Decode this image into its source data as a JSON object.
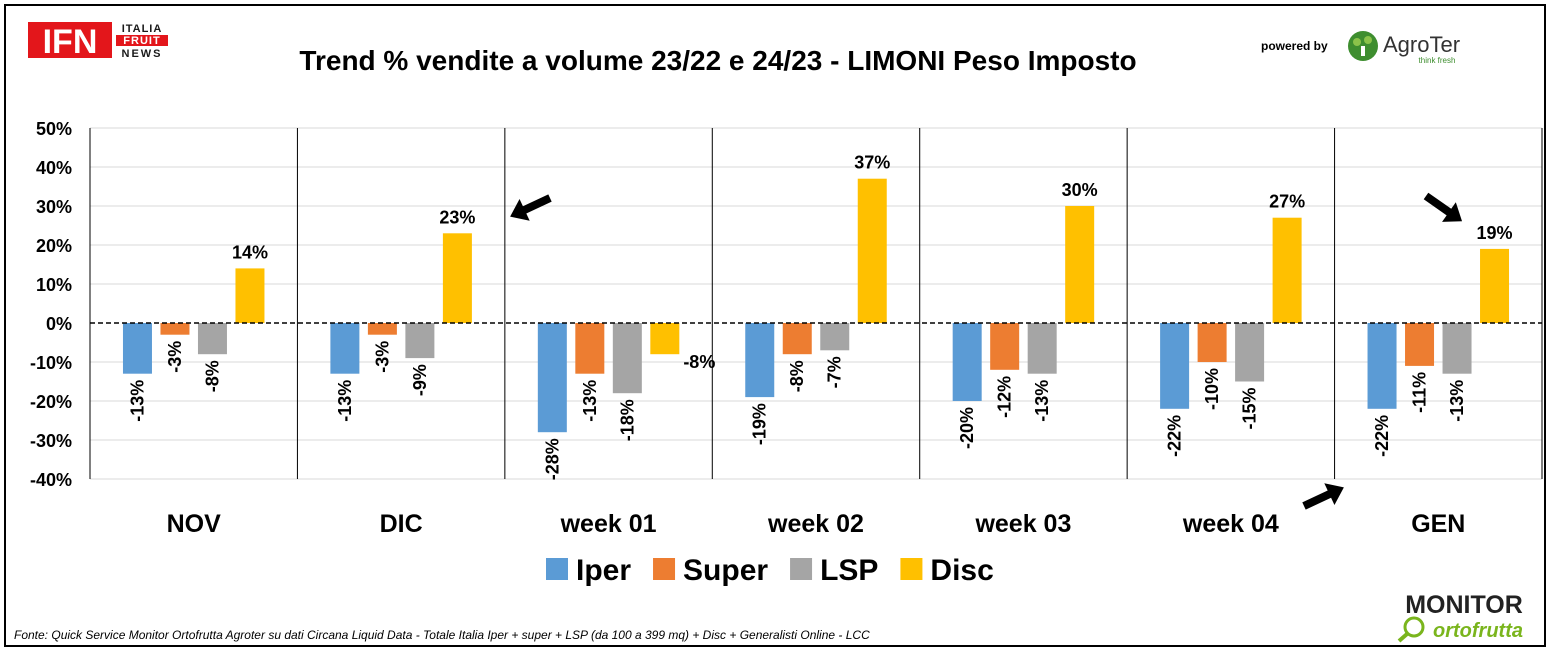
{
  "title": "Trend % vendite a volume 23/22 e 24/23 - LIMONI Peso Imposto",
  "footer_source": "Fonte: Quick Service Monitor Ortofrutta Agroter su dati Circana Liquid Data - Totale Italia Iper + super + LSP (da 100 a 399 mq) + Disc + Generalisti Online - LCC",
  "logos": {
    "ifn_main": "IFN",
    "ifn_side": [
      "ITALIA",
      "FRUIT",
      "NEWS"
    ],
    "powered_by": "powered by",
    "agroter": "AgroTer",
    "agroter_tagline": "think fresh",
    "monitor_top": "MONITOR",
    "monitor_bottom": "ortofrutta"
  },
  "colors": {
    "Iper": "#5B9BD5",
    "Super": "#ED7D31",
    "LSP": "#A5A5A5",
    "Disc": "#FFC000",
    "ifn_red": "#E3161B",
    "agroter_green": "#3E8E2F",
    "monitor_green": "#7AB51D"
  },
  "chart_data": {
    "type": "bar",
    "title": "Trend % vendite a volume 23/22 e 24/23 - LIMONI Peso Imposto",
    "categories": [
      "NOV",
      "DIC",
      "week 01",
      "week 02",
      "week 03",
      "week 04",
      "GEN"
    ],
    "series": [
      {
        "name": "Iper",
        "values": [
          -13,
          -13,
          -28,
          -19,
          -20,
          -22,
          -22
        ]
      },
      {
        "name": "Super",
        "values": [
          -3,
          -3,
          -13,
          -8,
          -12,
          -10,
          -11
        ]
      },
      {
        "name": "LSP",
        "values": [
          -8,
          -9,
          -18,
          -7,
          -13,
          -15,
          -13
        ]
      },
      {
        "name": "Disc",
        "values": [
          14,
          23,
          -8,
          37,
          30,
          27,
          19
        ]
      }
    ],
    "ylim": [
      -40,
      50
    ],
    "yticks": [
      -40,
      -30,
      -20,
      -10,
      0,
      10,
      20,
      30,
      40,
      50
    ],
    "value_suffix": "%",
    "grid": true,
    "legend_position": "bottom"
  }
}
